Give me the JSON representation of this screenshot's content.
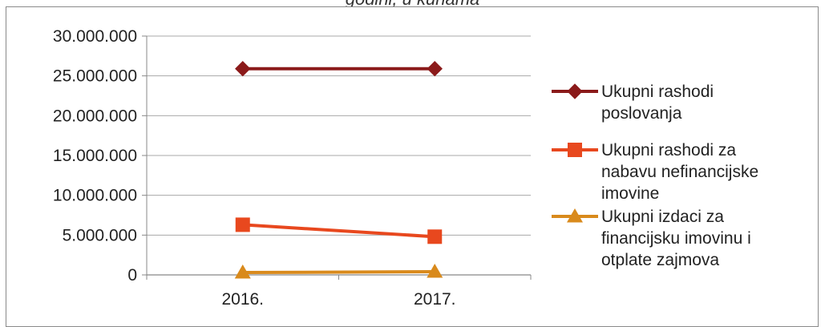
{
  "title_fragment": "godini, u kunama",
  "chart_data": {
    "type": "line",
    "title": "godini, u kunama",
    "xlabel": "",
    "ylabel": "",
    "categories": [
      "2016.",
      "2017."
    ],
    "ylim": [
      0,
      30000000
    ],
    "yticks": [
      0,
      5000000,
      10000000,
      15000000,
      20000000,
      25000000,
      30000000
    ],
    "ytick_labels": [
      "0",
      "5.000.000",
      "10.000.000",
      "15.000.000",
      "20.000.000",
      "25.000.000",
      "30.000.000"
    ],
    "grid": true,
    "legend_position": "right",
    "series": [
      {
        "name": "Ukupni rashodi poslovanja",
        "values": [
          25900000,
          25900000
        ],
        "color": "#8b1a1a",
        "marker": "diamond",
        "legend_lines": [
          "Ukupni rashodi",
          "poslovanja"
        ]
      },
      {
        "name": "Ukupni rashodi za nabavu nefinancijske imovine",
        "values": [
          6300000,
          4800000
        ],
        "color": "#e8481e",
        "marker": "square",
        "legend_lines": [
          "Ukupni rashodi za",
          "nabavu nefinancijske",
          "imovine"
        ]
      },
      {
        "name": "Ukupni izdaci za financijsku imovinu i otplate zajmova",
        "values": [
          300000,
          400000
        ],
        "color": "#d98a1c",
        "marker": "triangle",
        "legend_lines": [
          "Ukupni izdaci za",
          "financijsku imovinu i",
          "otplate zajmova"
        ]
      }
    ]
  }
}
